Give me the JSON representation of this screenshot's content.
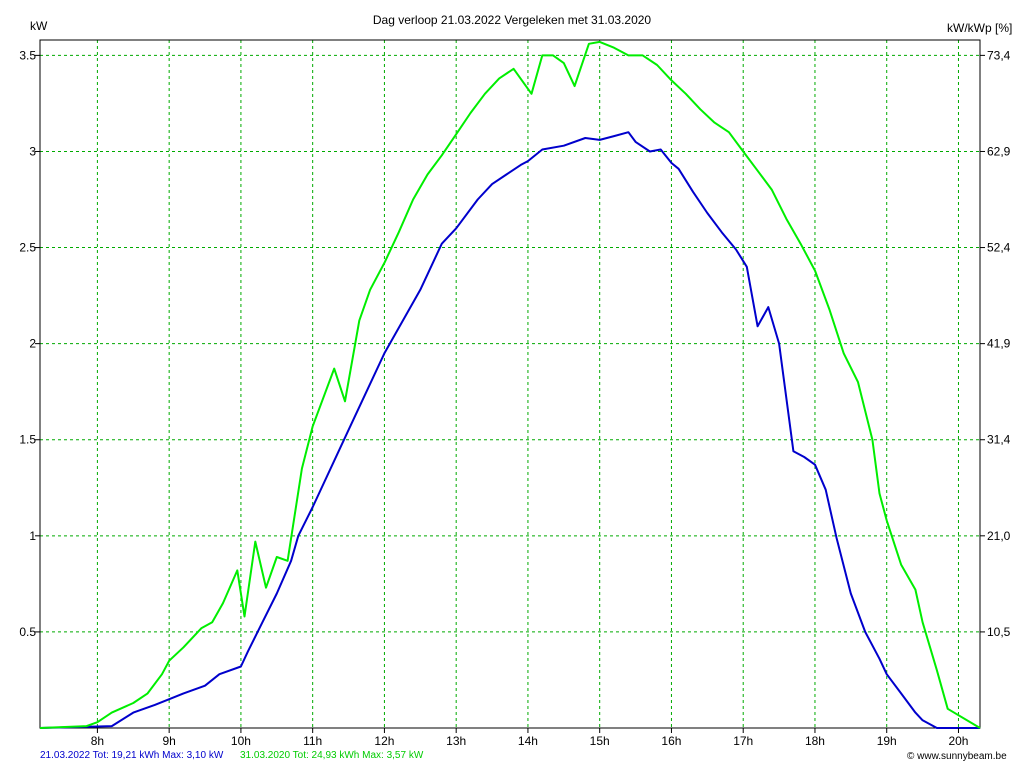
{
  "chart_data": {
    "type": "line",
    "title": "Dag  verloop 21.03.2022   Vergeleken met 31.03.2020",
    "ylabel_left": "kW",
    "ylabel_right": "kW/kWp [%]",
    "xticks": [
      "8h",
      "9h",
      "10h",
      "11h",
      "12h",
      "13h",
      "14h",
      "15h",
      "16h",
      "17h",
      "18h",
      "19h",
      "20h"
    ],
    "yticks_left": [
      "0.5",
      "1",
      "1.5",
      "2",
      "2.5",
      "3",
      "3.5"
    ],
    "yticks_right": [
      "10,5",
      "21,0",
      "31,4",
      "41,9",
      "52,4",
      "62,9",
      "73,4"
    ],
    "xlim": [
      7.2,
      20.3
    ],
    "ylim": [
      0,
      3.58
    ],
    "grid": true,
    "colors": {
      "series_2022": "#0000cc",
      "series_2020": "#00ee00",
      "grid": "#00aa00"
    },
    "series": [
      {
        "name": "21.03.2022",
        "color": "#0000cc",
        "x": [
          7.2,
          8.2,
          8.5,
          8.8,
          9.0,
          9.2,
          9.5,
          9.7,
          10.0,
          10.1,
          10.3,
          10.5,
          10.7,
          10.8,
          11.0,
          11.5,
          12.0,
          12.5,
          12.8,
          13.0,
          13.3,
          13.5,
          13.7,
          13.9,
          14.0,
          14.2,
          14.5,
          14.8,
          15.0,
          15.2,
          15.4,
          15.5,
          15.7,
          15.85,
          16.0,
          16.1,
          16.3,
          16.5,
          16.7,
          16.9,
          17.05,
          17.2,
          17.35,
          17.5,
          17.7,
          17.85,
          18.0,
          18.15,
          18.3,
          18.5,
          18.7,
          18.9,
          19.0,
          19.2,
          19.4,
          19.5,
          19.7,
          19.75,
          20.3
        ],
        "values": [
          0,
          0.01,
          0.08,
          0.12,
          0.15,
          0.18,
          0.22,
          0.28,
          0.32,
          0.4,
          0.55,
          0.7,
          0.87,
          1.0,
          1.15,
          1.55,
          1.95,
          2.28,
          2.52,
          2.6,
          2.75,
          2.83,
          2.88,
          2.93,
          2.95,
          3.01,
          3.03,
          3.07,
          3.06,
          3.08,
          3.1,
          3.05,
          3.0,
          3.01,
          2.94,
          2.91,
          2.79,
          2.68,
          2.58,
          2.49,
          2.4,
          2.09,
          2.19,
          2.0,
          1.44,
          1.41,
          1.37,
          1.24,
          0.99,
          0.7,
          0.5,
          0.36,
          0.28,
          0.18,
          0.08,
          0.04,
          0,
          0,
          0
        ]
      },
      {
        "name": "31.03.2020",
        "color": "#00ee00",
        "x": [
          7.2,
          7.85,
          8.0,
          8.2,
          8.5,
          8.7,
          8.9,
          9.0,
          9.2,
          9.45,
          9.6,
          9.75,
          9.95,
          10.05,
          10.2,
          10.35,
          10.5,
          10.65,
          10.85,
          11.0,
          11.3,
          11.45,
          11.65,
          11.8,
          12.0,
          12.2,
          12.4,
          12.6,
          12.8,
          13.0,
          13.2,
          13.4,
          13.6,
          13.8,
          14.05,
          14.2,
          14.35,
          14.5,
          14.65,
          14.85,
          15.0,
          15.2,
          15.4,
          15.6,
          15.8,
          16.0,
          16.2,
          16.4,
          16.6,
          16.8,
          17.0,
          17.2,
          17.4,
          17.6,
          17.8,
          18.0,
          18.2,
          18.4,
          18.6,
          18.8,
          18.9,
          19.0,
          19.2,
          19.4,
          19.5,
          19.7,
          19.85,
          20.3
        ],
        "values": [
          0,
          0.01,
          0.03,
          0.08,
          0.13,
          0.18,
          0.28,
          0.35,
          0.42,
          0.52,
          0.55,
          0.65,
          0.82,
          0.58,
          0.97,
          0.73,
          0.89,
          0.87,
          1.35,
          1.57,
          1.87,
          1.7,
          2.12,
          2.28,
          2.42,
          2.58,
          2.75,
          2.88,
          2.98,
          3.09,
          3.2,
          3.3,
          3.38,
          3.43,
          3.3,
          3.5,
          3.5,
          3.46,
          3.34,
          3.56,
          3.57,
          3.54,
          3.5,
          3.5,
          3.45,
          3.37,
          3.3,
          3.22,
          3.15,
          3.1,
          3.0,
          2.9,
          2.8,
          2.65,
          2.52,
          2.38,
          2.18,
          1.95,
          1.8,
          1.5,
          1.22,
          1.08,
          0.85,
          0.72,
          0.55,
          0.3,
          0.1,
          0
        ]
      }
    ]
  },
  "legend": {
    "entry_2022": "21.03.2022 Tot: 19,21 kWh Max: 3,10 kW",
    "entry_2020": "31.03.2020 Tot: 24,93 kWh Max: 3,57 kW"
  },
  "credit": "© www.sunnybeam.be"
}
